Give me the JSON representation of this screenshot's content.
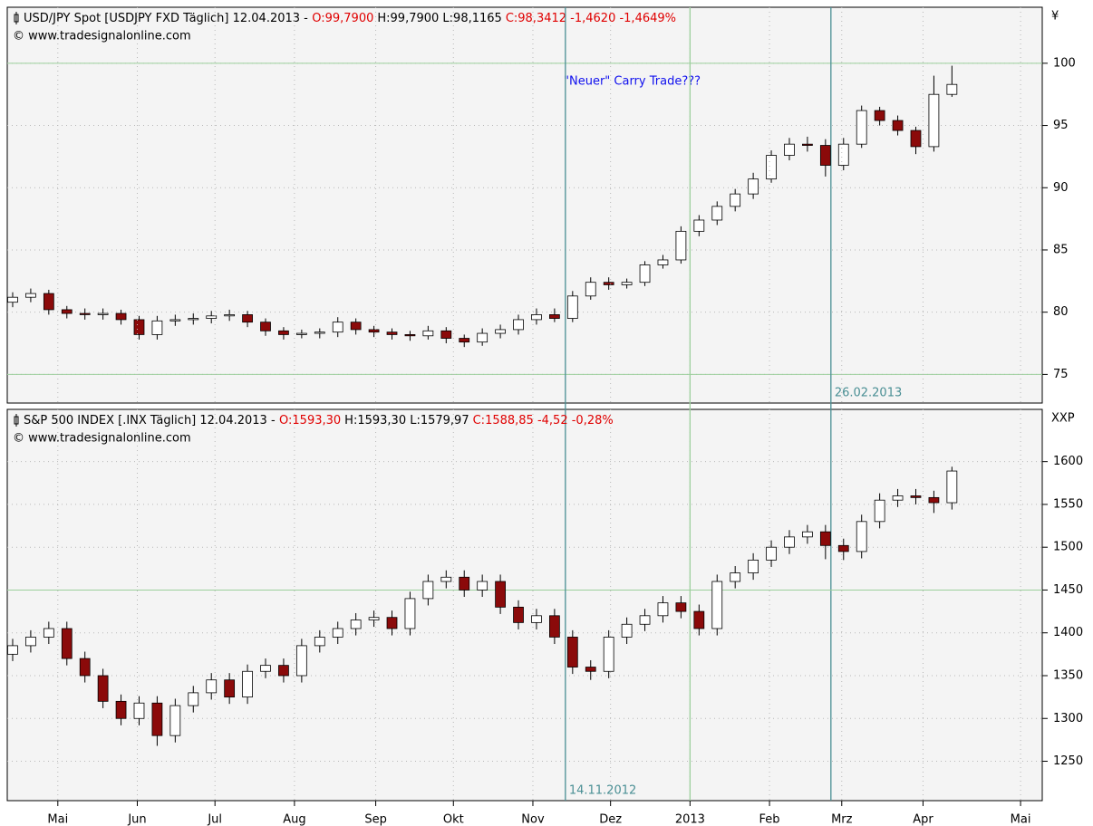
{
  "chart_data": [
    {
      "type": "candlestick",
      "header": [
        "USD/JPY Spot [USDJPY FXD  Täglich] 12.04.2013 -",
        "O:99,7900",
        "H:99,7900 L:98,1165",
        "C:98,3412 -1,4620 -1,4649%"
      ],
      "header_colors": [
        "#000000",
        "#e00000",
        "#000000",
        "#e00000"
      ],
      "source": "© www.tradesignalonline.com",
      "unit": "¥",
      "annotation": "\"Neuer\" Carry Trade???",
      "annotation_color": "#1010ee",
      "x": [
        -2.5,
        -1.5,
        -0.5,
        0.5,
        1.5,
        2.5,
        3.5,
        4.5,
        5.5,
        6.5,
        7.5,
        8.5,
        9.5,
        10.5,
        11.5,
        12.5,
        13.5,
        14.5,
        15.5,
        16.5,
        17.5,
        18.5,
        19.5,
        20.5,
        21.5,
        22.5,
        23.5,
        24.5,
        25.5,
        26.5,
        27.5,
        28.5,
        29.5,
        30.5,
        31.5,
        32.5,
        33.5,
        34.5,
        35.5,
        36.5,
        37.5,
        38.5,
        39.5,
        40.5,
        41.5,
        42.5,
        43.5,
        44.5,
        45.5,
        46.5,
        47.5,
        48.5,
        49.5
      ],
      "open": [
        80.8,
        81.2,
        81.5,
        80.2,
        79.9,
        79.8,
        79.9,
        79.4,
        78.2,
        79.3,
        79.4,
        79.5,
        79.7,
        79.8,
        79.2,
        78.5,
        78.2,
        78.3,
        78.4,
        79.2,
        78.6,
        78.4,
        78.2,
        78.1,
        78.5,
        77.9,
        77.6,
        78.3,
        78.6,
        79.4,
        79.8,
        79.5,
        81.3,
        82.4,
        82.2,
        82.4,
        83.8,
        84.2,
        86.5,
        87.4,
        88.5,
        89.5,
        90.7,
        92.6,
        93.5,
        93.4,
        91.8,
        93.5,
        96.2,
        95.4,
        94.6,
        93.3,
        97.5
      ],
      "high": [
        81.6,
        81.9,
        81.8,
        80.5,
        80.3,
        80.3,
        80.2,
        79.7,
        79.7,
        79.8,
        79.9,
        80.1,
        80.2,
        80.1,
        79.5,
        78.8,
        78.6,
        78.7,
        79.6,
        79.5,
        78.9,
        78.7,
        78.5,
        78.9,
        78.8,
        78.2,
        78.7,
        79.0,
        79.8,
        80.3,
        80.3,
        81.7,
        82.8,
        82.8,
        82.7,
        84.1,
        84.6,
        86.9,
        87.8,
        88.9,
        89.9,
        91.2,
        93.0,
        94.0,
        94.1,
        93.9,
        94.0,
        96.6,
        96.5,
        95.8,
        94.9,
        99.0,
        99.8
      ],
      "low": [
        80.4,
        80.8,
        79.8,
        79.5,
        79.4,
        79.4,
        79.0,
        77.8,
        77.8,
        78.9,
        79.0,
        79.1,
        79.3,
        78.8,
        78.1,
        77.8,
        77.9,
        77.9,
        78.0,
        78.2,
        78.0,
        77.8,
        77.7,
        77.8,
        77.5,
        77.2,
        77.3,
        77.9,
        78.2,
        79.0,
        79.2,
        79.2,
        81.0,
        81.8,
        81.9,
        82.1,
        83.5,
        83.9,
        86.1,
        87.0,
        88.1,
        89.1,
        90.4,
        92.2,
        92.9,
        90.9,
        91.4,
        93.2,
        95.0,
        94.2,
        92.7,
        92.9,
        97.3
      ],
      "close": [
        81.2,
        81.5,
        80.2,
        79.9,
        79.8,
        79.9,
        79.4,
        78.2,
        79.3,
        79.4,
        79.5,
        79.7,
        79.8,
        79.2,
        78.5,
        78.2,
        78.3,
        78.4,
        79.2,
        78.6,
        78.4,
        78.2,
        78.1,
        78.5,
        77.9,
        77.6,
        78.3,
        78.6,
        79.4,
        79.8,
        79.5,
        81.3,
        82.4,
        82.2,
        82.4,
        83.8,
        84.2,
        86.5,
        87.4,
        88.5,
        89.5,
        90.7,
        92.6,
        93.5,
        93.4,
        91.8,
        93.5,
        96.2,
        95.4,
        94.6,
        93.3,
        97.5,
        98.3
      ],
      "up_color": "#ffffff",
      "down_color": "#8b0a0a",
      "xlim": [
        -2.8,
        54.5
      ],
      "ylim": [
        72.7,
        104.5
      ],
      "yticks": [
        75,
        80,
        85,
        90,
        95,
        100
      ],
      "hlines": [
        100,
        75
      ],
      "vlines": [
        {
          "x": 42.8,
          "label": "26.02.2013",
          "color": "#4a8f94"
        }
      ]
    },
    {
      "type": "candlestick",
      "header": [
        "S&P 500 INDEX [.INX  Täglich] 12.04.2013 -",
        "O:1593,30",
        "H:1593,30 L:1579,97",
        "C:1588,85 -4,52 -0,28%"
      ],
      "header_colors": [
        "#000000",
        "#e00000",
        "#000000",
        "#e00000"
      ],
      "source": "© www.tradesignalonline.com",
      "unit": "XXP",
      "x": [
        -2.5,
        -1.5,
        -0.5,
        0.5,
        1.5,
        2.5,
        3.5,
        4.5,
        5.5,
        6.5,
        7.5,
        8.5,
        9.5,
        10.5,
        11.5,
        12.5,
        13.5,
        14.5,
        15.5,
        16.5,
        17.5,
        18.5,
        19.5,
        20.5,
        21.5,
        22.5,
        23.5,
        24.5,
        25.5,
        26.5,
        27.5,
        28.5,
        29.5,
        30.5,
        31.5,
        32.5,
        33.5,
        34.5,
        35.5,
        36.5,
        37.5,
        38.5,
        39.5,
        40.5,
        41.5,
        42.5,
        43.5,
        44.5,
        45.5,
        46.5,
        47.5,
        48.5,
        49.5
      ],
      "open": [
        1375,
        1385,
        1395,
        1405,
        1370,
        1350,
        1320,
        1300,
        1318,
        1280,
        1315,
        1330,
        1345,
        1325,
        1355,
        1362,
        1350,
        1385,
        1395,
        1405,
        1415,
        1418,
        1405,
        1440,
        1460,
        1465,
        1450,
        1460,
        1430,
        1412,
        1420,
        1395,
        1360,
        1355,
        1395,
        1410,
        1420,
        1435,
        1425,
        1405,
        1460,
        1470,
        1485,
        1500,
        1512,
        1518,
        1502,
        1495,
        1530,
        1555,
        1560,
        1558,
        1552
      ],
      "high": [
        1393,
        1403,
        1413,
        1413,
        1378,
        1358,
        1328,
        1326,
        1326,
        1323,
        1338,
        1353,
        1353,
        1363,
        1370,
        1370,
        1393,
        1403,
        1413,
        1423,
        1426,
        1426,
        1448,
        1468,
        1473,
        1473,
        1468,
        1468,
        1438,
        1428,
        1428,
        1403,
        1368,
        1403,
        1418,
        1428,
        1443,
        1443,
        1433,
        1468,
        1478,
        1493,
        1508,
        1520,
        1526,
        1526,
        1510,
        1538,
        1563,
        1568,
        1568,
        1566,
        1594
      ],
      "low": [
        1367,
        1377,
        1387,
        1362,
        1342,
        1312,
        1292,
        1292,
        1268,
        1272,
        1307,
        1322,
        1317,
        1317,
        1347,
        1342,
        1342,
        1377,
        1387,
        1397,
        1407,
        1397,
        1397,
        1432,
        1452,
        1442,
        1442,
        1422,
        1404,
        1404,
        1387,
        1352,
        1345,
        1347,
        1387,
        1402,
        1412,
        1417,
        1397,
        1397,
        1452,
        1462,
        1477,
        1492,
        1504,
        1486,
        1485,
        1487,
        1522,
        1547,
        1550,
        1540,
        1544
      ],
      "close": [
        1385,
        1395,
        1405,
        1370,
        1350,
        1320,
        1300,
        1318,
        1280,
        1315,
        1330,
        1345,
        1325,
        1355,
        1362,
        1350,
        1385,
        1395,
        1405,
        1415,
        1418,
        1405,
        1440,
        1460,
        1465,
        1450,
        1460,
        1430,
        1412,
        1420,
        1395,
        1360,
        1355,
        1395,
        1410,
        1420,
        1435,
        1425,
        1405,
        1460,
        1470,
        1485,
        1500,
        1512,
        1518,
        1502,
        1495,
        1530,
        1555,
        1560,
        1558,
        1552,
        1589
      ],
      "up_color": "#ffffff",
      "down_color": "#8b0a0a",
      "xlim": [
        -2.8,
        54.5
      ],
      "ylim": [
        1204,
        1661
      ],
      "yticks": [
        1250,
        1300,
        1350,
        1400,
        1450,
        1500,
        1550,
        1600
      ],
      "hlines": [
        1450
      ],
      "xticks": [
        {
          "value": 0,
          "label": "Mai"
        },
        {
          "value": 4.4,
          "label": "Jun"
        },
        {
          "value": 8.7,
          "label": "Jul"
        },
        {
          "value": 13.1,
          "label": "Aug"
        },
        {
          "value": 17.6,
          "label": "Sep"
        },
        {
          "value": 21.9,
          "label": "Okt"
        },
        {
          "value": 26.3,
          "label": "Nov"
        },
        {
          "value": 30.6,
          "label": "Dez"
        },
        {
          "value": 35.0,
          "label": "2013"
        },
        {
          "value": 39.4,
          "label": "Feb"
        },
        {
          "value": 43.4,
          "label": "Mrz"
        },
        {
          "value": 47.9,
          "label": "Apr"
        },
        {
          "value": 53.3,
          "label": "Mai"
        }
      ],
      "vlines": [
        {
          "x": 28.1,
          "label": "14.11.2012",
          "color": "#4a8f94"
        },
        {
          "x": 35.0,
          "color": "#9ccf9c"
        }
      ]
    }
  ]
}
